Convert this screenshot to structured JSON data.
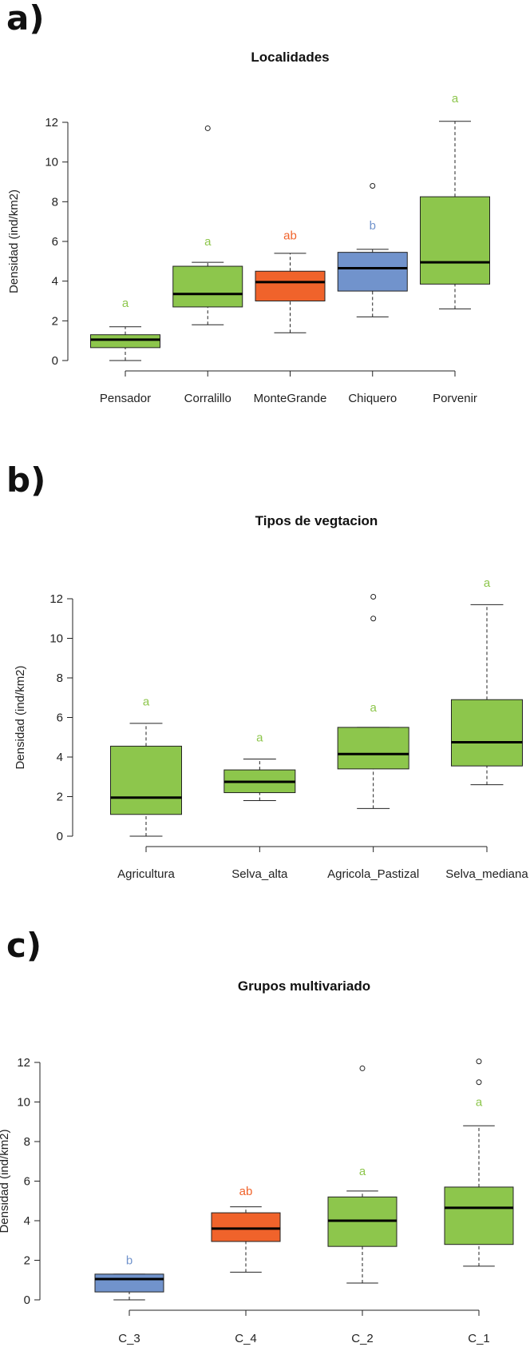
{
  "colors": {
    "green": "#8dc64c",
    "orange": "#f0632b",
    "blue": "#7193cc"
  },
  "panel_labels": [
    "a)",
    "b)",
    "c)"
  ],
  "chart_data": [
    {
      "type": "boxplot",
      "title": "Localidades",
      "ylabel": "Densidad (ind/km2)",
      "xlabel": "",
      "ylim": [
        0,
        12
      ],
      "yticks": [
        0,
        2,
        4,
        6,
        8,
        10,
        12
      ],
      "categories": [
        "Pensador",
        "Corralillo",
        "MonteGrande",
        "Chiquero",
        "Porvenir"
      ],
      "boxes": [
        {
          "label": "Pensador",
          "whisker_low": 0.0,
          "q1": 0.65,
          "median": 1.05,
          "q3": 1.3,
          "whisker_high": 1.7,
          "outliers": [],
          "color": "green",
          "letter": "a",
          "letter_y": 2.9
        },
        {
          "label": "Corralillo",
          "whisker_low": 1.8,
          "q1": 2.7,
          "median": 3.35,
          "q3": 4.75,
          "whisker_high": 4.95,
          "outliers": [
            11.7
          ],
          "color": "green",
          "letter": "a",
          "letter_y": 6.0
        },
        {
          "label": "MonteGrande",
          "whisker_low": 1.4,
          "q1": 3.0,
          "median": 3.95,
          "q3": 4.5,
          "whisker_high": 5.4,
          "outliers": [],
          "color": "orange",
          "letter": "ab",
          "letter_y": 6.3
        },
        {
          "label": "Chiquero",
          "whisker_low": 2.2,
          "q1": 3.5,
          "median": 4.65,
          "q3": 5.45,
          "whisker_high": 5.6,
          "outliers": [
            8.8
          ],
          "color": "blue",
          "letter": "b",
          "letter_y": 6.8
        },
        {
          "label": "Porvenir",
          "whisker_low": 2.6,
          "q1": 3.85,
          "median": 4.95,
          "q3": 8.25,
          "whisker_high": 12.05,
          "outliers": [],
          "color": "green",
          "letter": "a",
          "letter_y": 13.2
        }
      ]
    },
    {
      "type": "boxplot",
      "title": "Tipos de vegtacion",
      "ylabel": "Densidad (ind/km2)",
      "xlabel": "",
      "ylim": [
        0,
        12
      ],
      "yticks": [
        0,
        2,
        4,
        6,
        8,
        10,
        12
      ],
      "categories": [
        "Agricultura",
        "Selva_alta",
        "Agricola_Pastizal",
        "Selva_mediana"
      ],
      "boxes": [
        {
          "label": "Agricultura",
          "whisker_low": 0.0,
          "q1": 1.1,
          "median": 1.95,
          "q3": 4.55,
          "whisker_high": 5.7,
          "outliers": [],
          "color": "green",
          "letter": "a",
          "letter_y": 6.8
        },
        {
          "label": "Selva_alta",
          "whisker_low": 1.8,
          "q1": 2.2,
          "median": 2.75,
          "q3": 3.35,
          "whisker_high": 3.9,
          "outliers": [],
          "color": "green",
          "letter": "a",
          "letter_y": 5.0
        },
        {
          "label": "Agricola_Pastizal",
          "whisker_low": 1.4,
          "q1": 3.4,
          "median": 4.15,
          "q3": 5.5,
          "whisker_high": 5.5,
          "outliers": [
            11.0,
            12.1
          ],
          "color": "green",
          "letter": "a",
          "letter_y": 6.5
        },
        {
          "label": "Selva_mediana",
          "whisker_low": 2.6,
          "q1": 3.55,
          "median": 4.75,
          "q3": 6.9,
          "whisker_high": 11.7,
          "outliers": [],
          "color": "green",
          "letter": "a",
          "letter_y": 12.8
        }
      ]
    },
    {
      "type": "boxplot",
      "title": "Grupos multivariado",
      "ylabel": "Densidad (ind/km2)",
      "xlabel": "",
      "ylim": [
        0,
        12
      ],
      "yticks": [
        0,
        2,
        4,
        6,
        8,
        10,
        12
      ],
      "categories": [
        "C_3",
        "C_4",
        "C_2",
        "C_1"
      ],
      "boxes": [
        {
          "label": "C_3",
          "whisker_low": 0.0,
          "q1": 0.4,
          "median": 1.05,
          "q3": 1.3,
          "whisker_high": 1.3,
          "outliers": [],
          "color": "blue",
          "letter": "b",
          "letter_y": 2.0
        },
        {
          "label": "C_4",
          "whisker_low": 1.4,
          "q1": 2.95,
          "median": 3.6,
          "q3": 4.4,
          "whisker_high": 4.7,
          "outliers": [],
          "color": "orange",
          "letter": "ab",
          "letter_y": 5.5
        },
        {
          "label": "C_2",
          "whisker_low": 0.85,
          "q1": 2.7,
          "median": 4.0,
          "q3": 5.2,
          "whisker_high": 5.5,
          "outliers": [
            11.7
          ],
          "color": "green",
          "letter": "a",
          "letter_y": 6.5
        },
        {
          "label": "C_1",
          "whisker_low": 1.7,
          "q1": 2.8,
          "median": 4.65,
          "q3": 5.7,
          "whisker_high": 8.8,
          "outliers": [
            11.0,
            12.05
          ],
          "color": "green",
          "letter": "a",
          "letter_y": 10.0
        }
      ]
    }
  ]
}
